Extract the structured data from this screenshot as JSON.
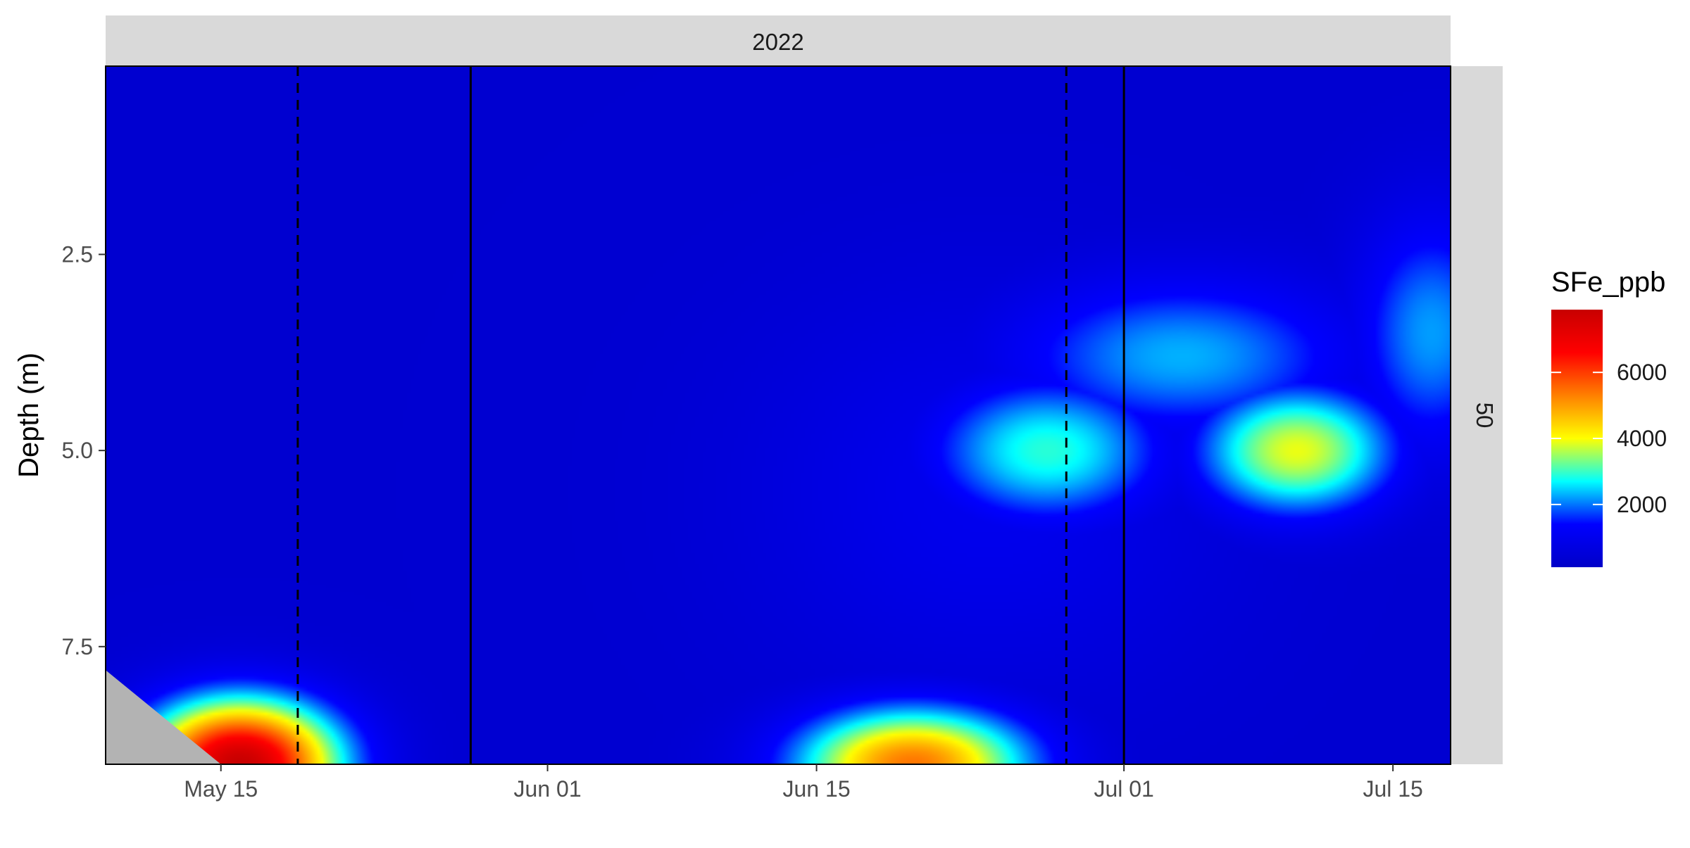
{
  "chart_data": {
    "type": "heatmap",
    "facet": {
      "column_strip": "2022",
      "row_strip": "50"
    },
    "xlabel": "",
    "ylabel": "Depth (m)",
    "x_ticks": [
      {
        "date": "2022-05-15",
        "label": "May 15"
      },
      {
        "date": "2022-06-01",
        "label": "Jun 01"
      },
      {
        "date": "2022-06-15",
        "label": "Jun 15"
      },
      {
        "date": "2022-07-01",
        "label": "Jul 01"
      },
      {
        "date": "2022-07-15",
        "label": "Jul 15"
      }
    ],
    "xlim": [
      "2022-05-09",
      "2022-07-18"
    ],
    "y_ticks": [
      {
        "value": 2.5,
        "label": "2.5"
      },
      {
        "value": 5.0,
        "label": "5.0"
      },
      {
        "value": 7.5,
        "label": "7.5"
      }
    ],
    "ylim": [
      0.1,
      9.0
    ],
    "y_reversed": true,
    "vlines_solid": [
      "2022-05-28",
      "2022-07-01"
    ],
    "vlines_dashed": [
      "2022-05-19",
      "2022-06-28"
    ],
    "colorbar": {
      "title": "SFe_ppb",
      "min": 100,
      "max": 7900,
      "ticks": [
        {
          "value": 2000,
          "label": "2000"
        },
        {
          "value": 4000,
          "label": "4000"
        },
        {
          "value": 6000,
          "label": "6000"
        }
      ],
      "colors": [
        "#0000c8",
        "#0000ff",
        "#00ffff",
        "#ffff00",
        "#ff8000",
        "#ff0000",
        "#c80000"
      ]
    },
    "background_value": 300,
    "hotspots": [
      {
        "date": "2022-05-16",
        "depth": 9.0,
        "value": 7900,
        "date_spread": 5,
        "depth_spread": 0.8
      },
      {
        "date": "2022-06-20",
        "depth": 9.0,
        "value": 5400,
        "date_spread": 6,
        "depth_spread": 0.7
      },
      {
        "date": "2022-06-27",
        "depth": 5.0,
        "value": 2900,
        "date_spread": 6,
        "depth_spread": 0.9
      },
      {
        "date": "2022-07-10",
        "depth": 5.0,
        "value": 3900,
        "date_spread": 5,
        "depth_spread": 0.8
      },
      {
        "date": "2022-07-04",
        "depth": 3.8,
        "value": 2300,
        "date_spread": 9,
        "depth_spread": 1.0
      },
      {
        "date": "2022-07-17",
        "depth": 3.5,
        "value": 2200,
        "date_spread": 4,
        "depth_spread": 1.5
      },
      {
        "date": "2022-06-24",
        "depth": 5.5,
        "value": 1000,
        "date_spread": 12,
        "depth_spread": 2.5
      }
    ],
    "nodata_region": {
      "polygon": [
        [
          "2022-05-09",
          7.8
        ],
        [
          "2022-05-15",
          9.0
        ],
        [
          "2022-05-09",
          9.0
        ]
      ],
      "color": "#b3b3b3"
    }
  }
}
